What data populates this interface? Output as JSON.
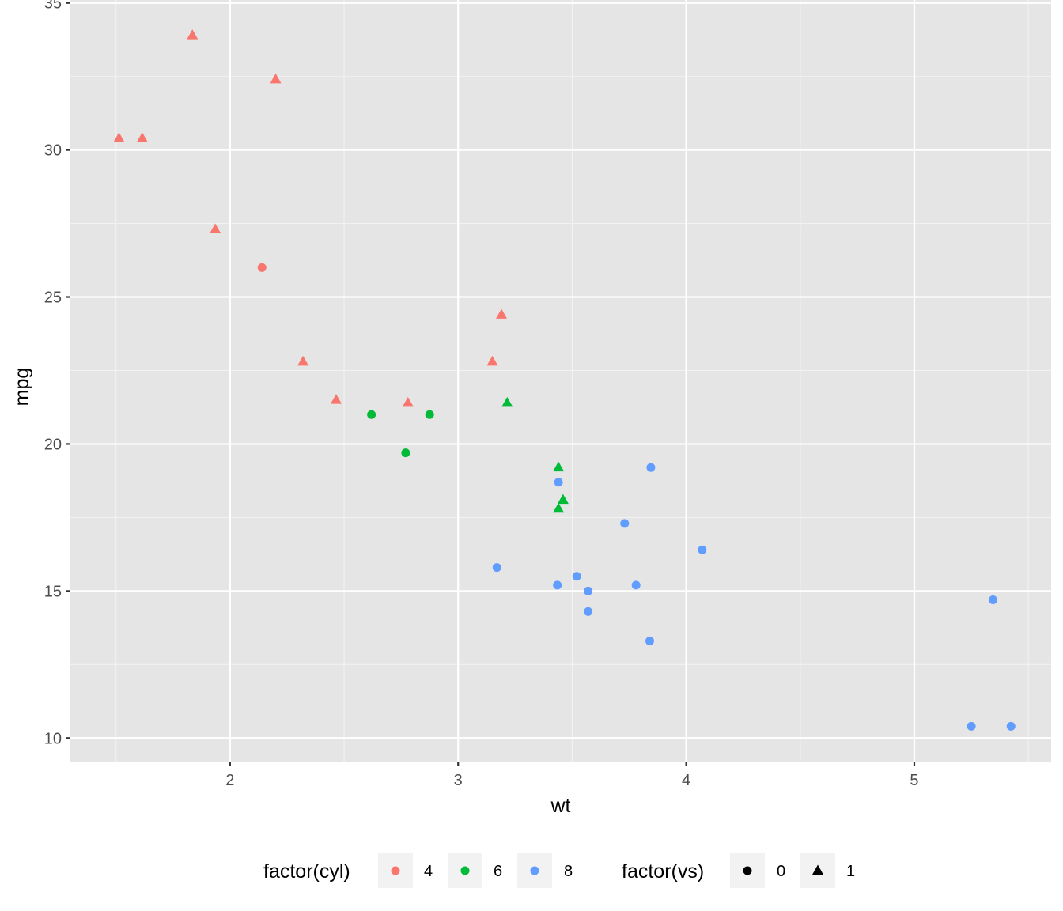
{
  "chart_data": {
    "type": "scatter",
    "xlabel": "wt",
    "ylabel": "mpg",
    "xlim": [
      1.3,
      5.6
    ],
    "ylim": [
      9.2,
      35.1
    ],
    "x_ticks": [
      2,
      3,
      4,
      5
    ],
    "y_ticks": [
      10,
      15,
      20,
      25,
      30,
      35
    ],
    "grid": true,
    "background": "#e5e5e5",
    "colors": {
      "4": "#f8766d",
      "6": "#00ba38",
      "8": "#619cff"
    },
    "points": [
      {
        "x": 2.62,
        "y": 21.0,
        "cyl": "6",
        "vs": "0"
      },
      {
        "x": 2.875,
        "y": 21.0,
        "cyl": "6",
        "vs": "0"
      },
      {
        "x": 2.32,
        "y": 22.8,
        "cyl": "4",
        "vs": "1"
      },
      {
        "x": 3.215,
        "y": 21.4,
        "cyl": "6",
        "vs": "1"
      },
      {
        "x": 3.44,
        "y": 18.7,
        "cyl": "8",
        "vs": "0"
      },
      {
        "x": 3.46,
        "y": 18.1,
        "cyl": "6",
        "vs": "1"
      },
      {
        "x": 3.57,
        "y": 14.3,
        "cyl": "8",
        "vs": "0"
      },
      {
        "x": 3.19,
        "y": 24.4,
        "cyl": "4",
        "vs": "1"
      },
      {
        "x": 3.15,
        "y": 22.8,
        "cyl": "4",
        "vs": "1"
      },
      {
        "x": 3.44,
        "y": 19.2,
        "cyl": "6",
        "vs": "1"
      },
      {
        "x": 3.44,
        "y": 17.8,
        "cyl": "6",
        "vs": "1"
      },
      {
        "x": 4.07,
        "y": 16.4,
        "cyl": "8",
        "vs": "0"
      },
      {
        "x": 3.73,
        "y": 17.3,
        "cyl": "8",
        "vs": "0"
      },
      {
        "x": 3.78,
        "y": 15.2,
        "cyl": "8",
        "vs": "0"
      },
      {
        "x": 5.25,
        "y": 10.4,
        "cyl": "8",
        "vs": "0"
      },
      {
        "x": 5.424,
        "y": 10.4,
        "cyl": "8",
        "vs": "0"
      },
      {
        "x": 5.345,
        "y": 14.7,
        "cyl": "8",
        "vs": "0"
      },
      {
        "x": 2.2,
        "y": 32.4,
        "cyl": "4",
        "vs": "1"
      },
      {
        "x": 1.615,
        "y": 30.4,
        "cyl": "4",
        "vs": "1"
      },
      {
        "x": 1.835,
        "y": 33.9,
        "cyl": "4",
        "vs": "1"
      },
      {
        "x": 2.465,
        "y": 21.5,
        "cyl": "4",
        "vs": "1"
      },
      {
        "x": 3.52,
        "y": 15.5,
        "cyl": "8",
        "vs": "0"
      },
      {
        "x": 3.435,
        "y": 15.2,
        "cyl": "8",
        "vs": "0"
      },
      {
        "x": 3.84,
        "y": 13.3,
        "cyl": "8",
        "vs": "0"
      },
      {
        "x": 3.845,
        "y": 19.2,
        "cyl": "8",
        "vs": "0"
      },
      {
        "x": 1.935,
        "y": 27.3,
        "cyl": "4",
        "vs": "1"
      },
      {
        "x": 2.14,
        "y": 26.0,
        "cyl": "4",
        "vs": "0"
      },
      {
        "x": 1.513,
        "y": 30.4,
        "cyl": "4",
        "vs": "1"
      },
      {
        "x": 3.17,
        "y": 15.8,
        "cyl": "8",
        "vs": "0"
      },
      {
        "x": 2.77,
        "y": 19.7,
        "cyl": "6",
        "vs": "0"
      },
      {
        "x": 3.57,
        "y": 15.0,
        "cyl": "8",
        "vs": "0"
      },
      {
        "x": 2.78,
        "y": 21.4,
        "cyl": "4",
        "vs": "1"
      }
    ],
    "legend": {
      "placement": "bottom",
      "color": {
        "title": "factor(cyl)",
        "entries": [
          {
            "label": "4",
            "color": "#f8766d"
          },
          {
            "label": "6",
            "color": "#00ba38"
          },
          {
            "label": "8",
            "color": "#619cff"
          }
        ]
      },
      "shape": {
        "title": "factor(vs)",
        "entries": [
          {
            "label": "0",
            "shape": "circle"
          },
          {
            "label": "1",
            "shape": "triangle"
          }
        ]
      }
    }
  }
}
